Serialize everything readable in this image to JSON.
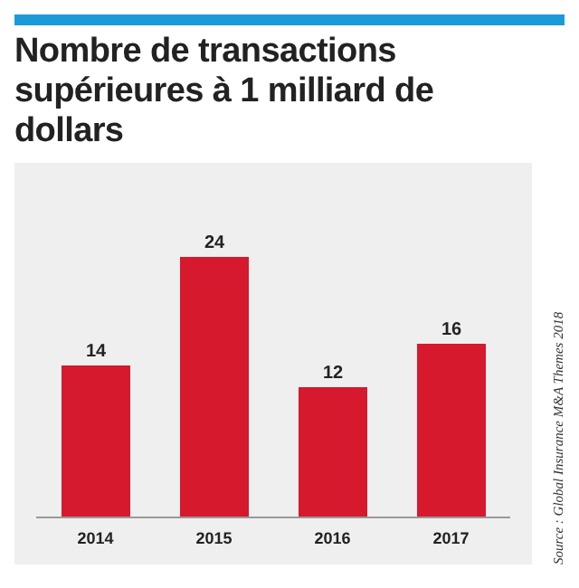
{
  "chart_data": {
    "type": "bar",
    "title": "Nombre de transactions supérieures à 1 milliard de dollars",
    "categories": [
      "2014",
      "2015",
      "2016",
      "2017"
    ],
    "values": [
      14,
      24,
      12,
      16
    ],
    "color": "#d7192d",
    "data_labels": true,
    "annotations": [
      "Source : Global Insurance M&A Themes 2018"
    ]
  }
}
